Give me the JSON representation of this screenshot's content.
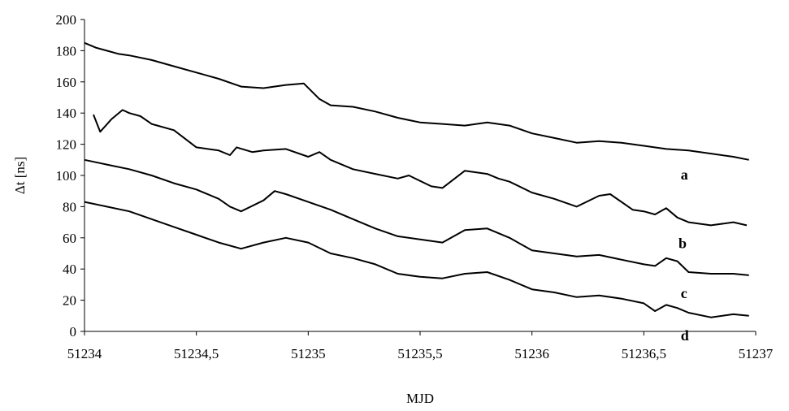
{
  "chart_data": {
    "type": "line",
    "title": "",
    "xlabel": "MJD",
    "ylabel": "Δt  [ns]",
    "xlim": [
      51234,
      51237
    ],
    "ylim": [
      0,
      200
    ],
    "x_ticks": [
      51234,
      51234.5,
      51235,
      51235.5,
      51236,
      51236.5,
      51237
    ],
    "x_tick_labels": [
      "51234",
      "51234,5",
      "51235",
      "51235,5",
      "51236",
      "51236,5",
      "51237"
    ],
    "y_ticks": [
      0,
      20,
      40,
      60,
      80,
      100,
      120,
      140,
      160,
      180,
      200
    ],
    "y_tick_labels": [
      "0",
      "20",
      "40",
      "60",
      "80",
      "100",
      "120",
      "140",
      "160",
      "180",
      "200"
    ],
    "grid": false,
    "legend": "none",
    "series": [
      {
        "name": "a",
        "x": [
          51234.0,
          51234.05,
          51234.1,
          51234.15,
          51234.2,
          51234.3,
          51234.4,
          51234.5,
          51234.6,
          51234.7,
          51234.8,
          51234.9,
          51234.98,
          51235.05,
          51235.1,
          51235.2,
          51235.3,
          51235.4,
          51235.5,
          51235.6,
          51235.7,
          51235.8,
          51235.9,
          51236.0,
          51236.1,
          51236.2,
          51236.3,
          51236.4,
          51236.5,
          51236.6,
          51236.7,
          51236.8,
          51236.9,
          51236.97
        ],
        "y": [
          185,
          182,
          180,
          178,
          177,
          174,
          170,
          166,
          162,
          157,
          156,
          158,
          159,
          149,
          145,
          144,
          141,
          137,
          134,
          133,
          132,
          134,
          132,
          127,
          124,
          121,
          122,
          121,
          119,
          117,
          116,
          114,
          112,
          110
        ]
      },
      {
        "name": "b",
        "x": [
          51234.04,
          51234.07,
          51234.12,
          51234.17,
          51234.2,
          51234.25,
          51234.3,
          51234.4,
          51234.5,
          51234.6,
          51234.65,
          51234.68,
          51234.75,
          51234.8,
          51234.9,
          51235.0,
          51235.05,
          51235.1,
          51235.2,
          51235.3,
          51235.4,
          51235.45,
          51235.55,
          51235.6,
          51235.7,
          51235.8,
          51235.85,
          51235.9,
          51236.0,
          51236.1,
          51236.2,
          51236.3,
          51236.35,
          51236.45,
          51236.5,
          51236.55,
          51236.6,
          51236.65,
          51236.7,
          51236.75,
          51236.8,
          51236.9,
          51236.96
        ],
        "y": [
          139,
          128,
          136,
          142,
          140,
          138,
          133,
          129,
          118,
          116,
          113,
          118,
          115,
          116,
          117,
          112,
          115,
          110,
          104,
          101,
          98,
          100,
          93,
          92,
          103,
          101,
          98,
          96,
          89,
          85,
          80,
          87,
          88,
          78,
          77,
          75,
          79,
          73,
          70,
          69,
          68,
          70,
          68
        ]
      },
      {
        "name": "c",
        "x": [
          51234.0,
          51234.1,
          51234.2,
          51234.3,
          51234.4,
          51234.5,
          51234.6,
          51234.65,
          51234.7,
          51234.8,
          51234.85,
          51234.9,
          51235.0,
          51235.1,
          51235.2,
          51235.3,
          51235.4,
          51235.5,
          51235.6,
          51235.7,
          51235.8,
          51235.9,
          51236.0,
          51236.1,
          51236.2,
          51236.3,
          51236.4,
          51236.5,
          51236.55,
          51236.6,
          51236.65,
          51236.7,
          51236.8,
          51236.9,
          51236.97
        ],
        "y": [
          110,
          107,
          104,
          100,
          95,
          91,
          85,
          80,
          77,
          84,
          90,
          88,
          83,
          78,
          72,
          66,
          61,
          59,
          57,
          65,
          66,
          60,
          52,
          50,
          48,
          49,
          46,
          43,
          42,
          47,
          45,
          38,
          37,
          37,
          36
        ]
      },
      {
        "name": "d",
        "x": [
          51234.0,
          51234.1,
          51234.2,
          51234.3,
          51234.4,
          51234.5,
          51234.6,
          51234.7,
          51234.8,
          51234.9,
          51235.0,
          51235.1,
          51235.2,
          51235.3,
          51235.4,
          51235.5,
          51235.6,
          51235.7,
          51235.8,
          51235.9,
          51236.0,
          51236.1,
          51236.2,
          51236.3,
          51236.4,
          51236.5,
          51236.55,
          51236.6,
          51236.65,
          51236.7,
          51236.8,
          51236.9,
          51236.97
        ],
        "y": [
          83,
          80,
          77,
          72,
          67,
          62,
          57,
          53,
          57,
          60,
          57,
          50,
          47,
          43,
          37,
          35,
          34,
          37,
          38,
          33,
          27,
          25,
          22,
          23,
          21,
          18,
          13,
          17,
          15,
          12,
          9,
          11,
          10
        ]
      }
    ]
  }
}
